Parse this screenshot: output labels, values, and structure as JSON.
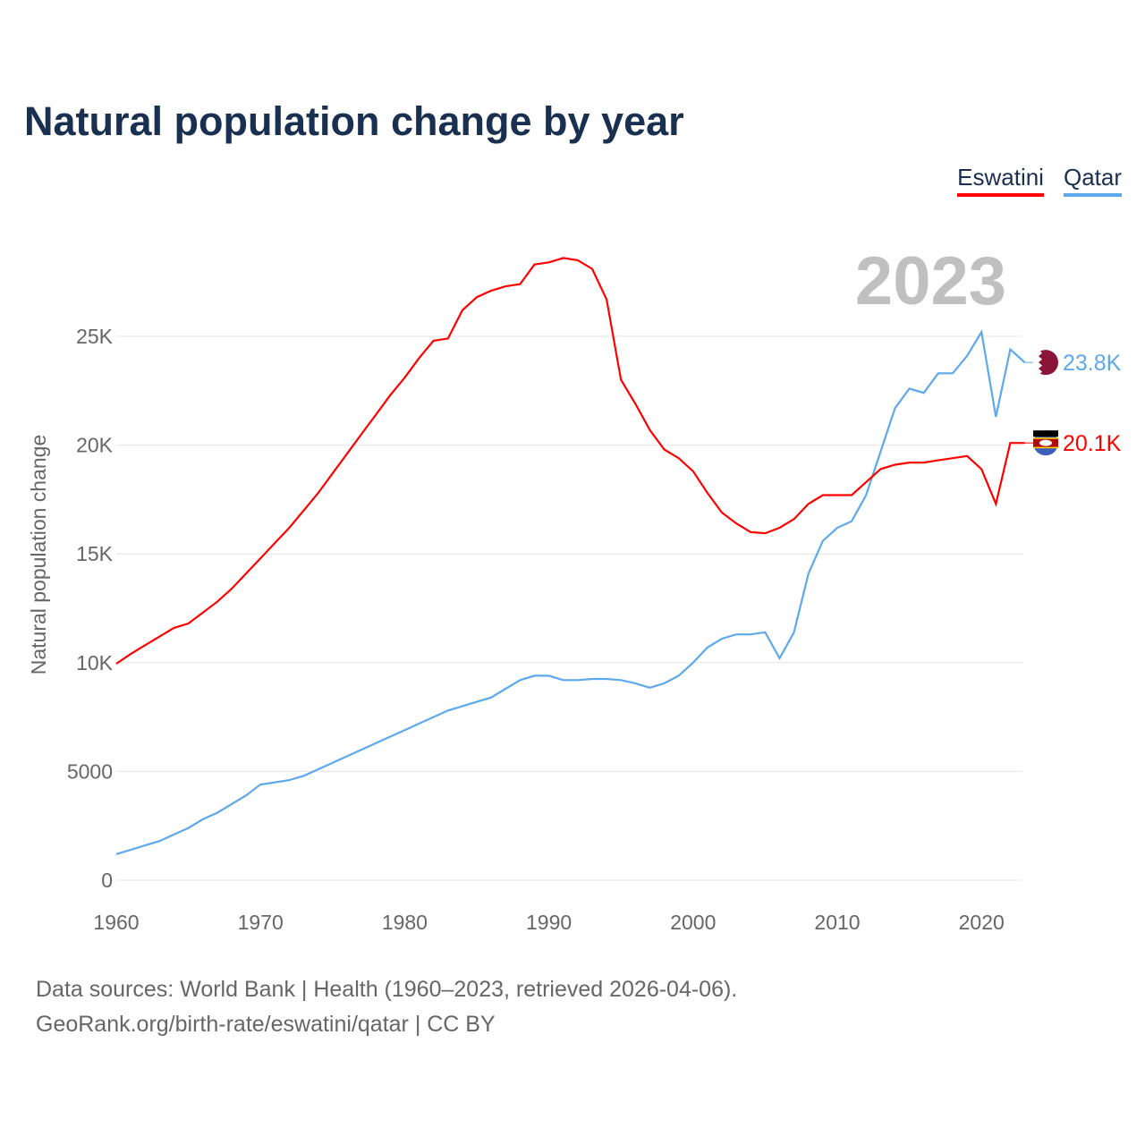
{
  "title": "Natural population change by year",
  "footer": {
    "line1": "Data sources: World Bank | Health (1960–2023, retrieved 2026-04-06).",
    "line2": "GeoRank.org/birth-rate/eswatini/qatar | CC BY"
  },
  "chart_data": {
    "type": "line",
    "title": "Natural population change by year",
    "xlabel": "",
    "ylabel": "Natural population change",
    "year_label": "2023",
    "xlim": [
      1960,
      2023
    ],
    "ylim": [
      0,
      29000
    ],
    "grid": true,
    "legend_placement": "top-right",
    "x_ticks": [
      "1960",
      "1970",
      "1980",
      "1990",
      "2000",
      "2010",
      "2020"
    ],
    "y_ticks": [
      {
        "v": 0,
        "label": "0"
      },
      {
        "v": 5000,
        "label": "5000"
      },
      {
        "v": 10000,
        "label": "10K"
      },
      {
        "v": 15000,
        "label": "15K"
      },
      {
        "v": 20000,
        "label": "20K"
      },
      {
        "v": 25000,
        "label": "25K"
      }
    ],
    "x_start": 1960,
    "series": [
      {
        "name": "Eswatini",
        "color": "#ff0000",
        "end_label": "20.1K",
        "flag": "eswatini-flag",
        "values": [
          9950,
          10400,
          10800,
          11200,
          11600,
          11800,
          12300,
          12800,
          13400,
          14100,
          14800,
          15500,
          16200,
          17000,
          17800,
          18700,
          19600,
          20500,
          21400,
          22300,
          23100,
          24000,
          24800,
          24900,
          26200,
          26800,
          27100,
          27300,
          27400,
          28300,
          28400,
          28600,
          28500,
          28100,
          26700,
          23000,
          21900,
          20700,
          19800,
          19400,
          18800,
          17800,
          16900,
          16400,
          16000,
          15950,
          16200,
          16600,
          17300,
          17700,
          17700,
          17700,
          18300,
          18900,
          19100,
          19200,
          19200,
          19300,
          19400,
          19500,
          18900,
          17300,
          20100,
          20100
        ]
      },
      {
        "name": "Qatar",
        "color": "#5ea8ec",
        "end_label": "23.8K",
        "flag": "qatar-flag",
        "values": [
          1200,
          1400,
          1600,
          1800,
          2100,
          2400,
          2800,
          3100,
          3500,
          3900,
          4400,
          4500,
          4600,
          4800,
          5100,
          5400,
          5700,
          6000,
          6300,
          6600,
          6900,
          7200,
          7500,
          7800,
          8000,
          8200,
          8400,
          8800,
          9200,
          9400,
          9400,
          9200,
          9200,
          9250,
          9250,
          9200,
          9050,
          8850,
          9050,
          9400,
          10000,
          10700,
          11100,
          11300,
          11300,
          11400,
          10200,
          11400,
          14100,
          15600,
          16200,
          16500,
          17700,
          19700,
          21700,
          22600,
          22400,
          23300,
          23300,
          24100,
          25200,
          21300,
          24400,
          23800
        ]
      }
    ]
  }
}
